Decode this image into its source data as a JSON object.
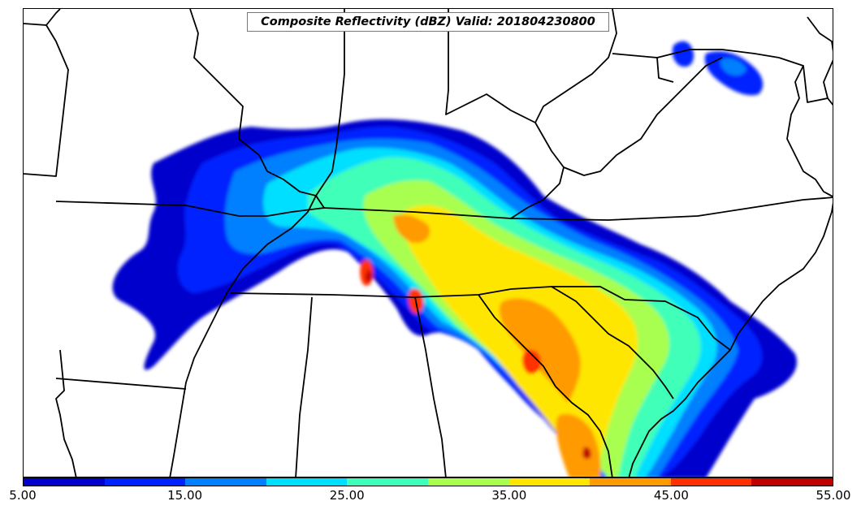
{
  "map": {
    "title": "Composite Reflectivity (dBZ) Valid: 201804230800"
  },
  "colorbar": {
    "colors": [
      "#0000cd",
      "#0022ff",
      "#007fff",
      "#00dfff",
      "#40ffb8",
      "#a8ff4f",
      "#ffe600",
      "#ff9a00",
      "#ff3000",
      "#c00000"
    ],
    "tick_labels": [
      "5.00",
      "15.00",
      "25.00",
      "35.00",
      "45.00",
      "55.00"
    ]
  }
}
